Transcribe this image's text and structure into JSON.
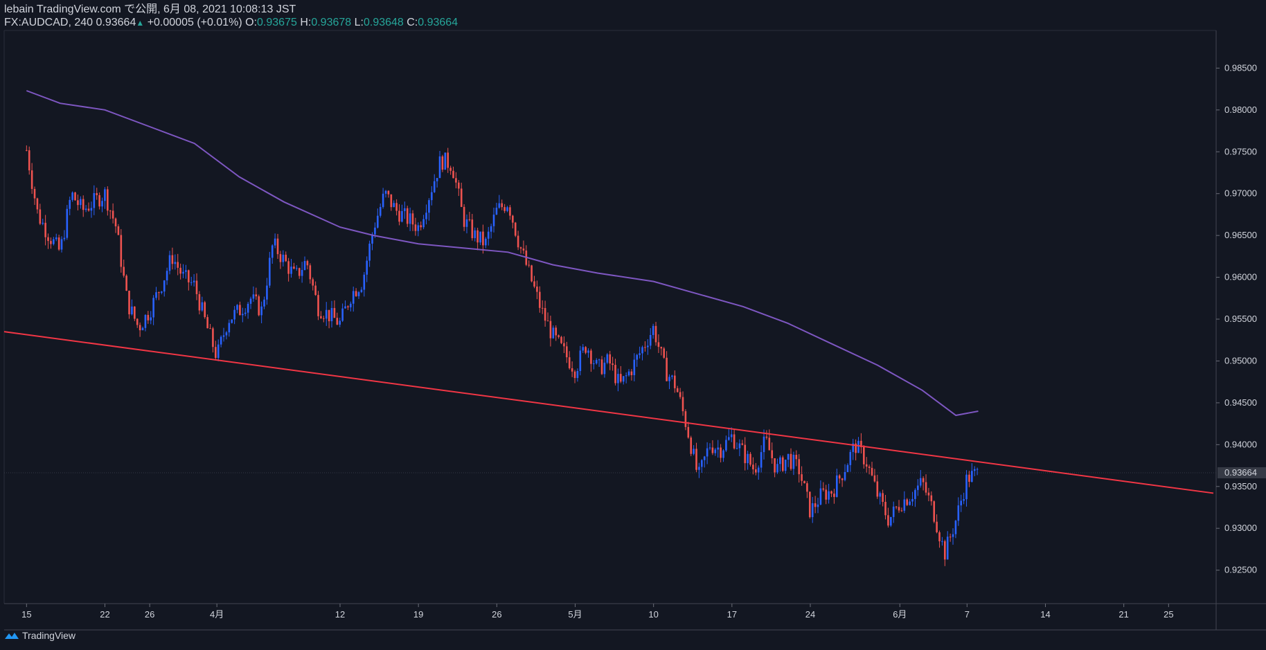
{
  "header": {
    "line1": "lebain TradingView.com で公開, 6月 08, 2021 10:08:13 JST",
    "symbol": "FX:AUDCAD, 240",
    "last": "0.93664",
    "change": "+0.00005 (+0.01%)",
    "o_label": "O:",
    "o_value": "0.93675",
    "h_label": "H:",
    "h_value": "0.93678",
    "l_label": "L:",
    "l_value": "0.93648",
    "c_label": "C:",
    "c_value": "0.93664"
  },
  "footer": {
    "brand": "TradingView",
    "logo_icon": "tradingview-logo-icon"
  },
  "colors": {
    "background": "#131722",
    "up": "#2962ff",
    "down": "#ef5350",
    "ma": "#7e57c2",
    "trendline": "#f23645",
    "text": "#d1d4dc",
    "grid": "#2a2e39"
  },
  "chart_data": {
    "type": "candlestick",
    "symbol": "FX:AUDCAD",
    "interval": "240",
    "y_ticks": [
      "0.98500",
      "0.98000",
      "0.97500",
      "0.97000",
      "0.96500",
      "0.96000",
      "0.95500",
      "0.95000",
      "0.94500",
      "0.94000",
      "0.93500",
      "0.93000",
      "0.92500"
    ],
    "ylim": [
      0.921,
      0.9895
    ],
    "x_ticks": [
      {
        "label": "15",
        "date": "2021-03-15"
      },
      {
        "label": "22",
        "date": "2021-03-22"
      },
      {
        "label": "26",
        "date": "2021-03-26"
      },
      {
        "label": "4月",
        "date": "2021-04-01"
      },
      {
        "label": "12",
        "date": "2021-04-12"
      },
      {
        "label": "19",
        "date": "2021-04-19"
      },
      {
        "label": "26",
        "date": "2021-04-26"
      },
      {
        "label": "5月",
        "date": "2021-05-03"
      },
      {
        "label": "10",
        "date": "2021-05-10"
      },
      {
        "label": "17",
        "date": "2021-05-17"
      },
      {
        "label": "24",
        "date": "2021-05-24"
      },
      {
        "label": "6月",
        "date": "2021-06-01"
      },
      {
        "label": "7",
        "date": "2021-06-07"
      },
      {
        "label": "14",
        "date": "2021-06-14"
      },
      {
        "label": "21",
        "date": "2021-06-21"
      },
      {
        "label": "25",
        "date": "2021-06-25"
      }
    ],
    "last_price": "0.93664",
    "close_path": [
      [
        "2021-03-15",
        0.9752
      ],
      [
        "2021-03-16",
        0.9675
      ],
      [
        "2021-03-17",
        0.965
      ],
      [
        "2021-03-18",
        0.963
      ],
      [
        "2021-03-19",
        0.97
      ],
      [
        "2021-03-20",
        0.968
      ],
      [
        "2021-03-22",
        0.97
      ],
      [
        "2021-03-23",
        0.966
      ],
      [
        "2021-03-24",
        0.957
      ],
      [
        "2021-03-25",
        0.954
      ],
      [
        "2021-03-26",
        0.956
      ],
      [
        "2021-03-27",
        0.959
      ],
      [
        "2021-03-28",
        0.9625
      ],
      [
        "2021-03-29",
        0.96
      ],
      [
        "2021-03-30",
        0.959
      ],
      [
        "2021-03-31",
        0.9545
      ],
      [
        "2021-04-01",
        0.9505
      ],
      [
        "2021-04-02",
        0.955
      ],
      [
        "2021-04-03",
        0.956
      ],
      [
        "2021-04-04",
        0.9575
      ],
      [
        "2021-04-05",
        0.956
      ],
      [
        "2021-04-06",
        0.964
      ],
      [
        "2021-04-07",
        0.962
      ],
      [
        "2021-04-08",
        0.96
      ],
      [
        "2021-04-09",
        0.962
      ],
      [
        "2021-04-10",
        0.9565
      ],
      [
        "2021-04-12",
        0.9545
      ],
      [
        "2021-04-13",
        0.958
      ],
      [
        "2021-04-14",
        0.9595
      ],
      [
        "2021-04-15",
        0.966
      ],
      [
        "2021-04-16",
        0.97
      ],
      [
        "2021-04-17",
        0.968
      ],
      [
        "2021-04-18",
        0.967
      ],
      [
        "2021-04-19",
        0.966
      ],
      [
        "2021-04-20",
        0.97
      ],
      [
        "2021-04-21",
        0.974
      ],
      [
        "2021-04-22",
        0.9735
      ],
      [
        "2021-04-23",
        0.967
      ],
      [
        "2021-04-24",
        0.965
      ],
      [
        "2021-04-25",
        0.964
      ],
      [
        "2021-04-26",
        0.968
      ],
      [
        "2021-04-27",
        0.969
      ],
      [
        "2021-04-28",
        0.964
      ],
      [
        "2021-04-29",
        0.96
      ],
      [
        "2021-04-30",
        0.956
      ],
      [
        "2021-05-01",
        0.953
      ],
      [
        "2021-05-02",
        0.951
      ],
      [
        "2021-05-03",
        0.949
      ],
      [
        "2021-05-04",
        0.952
      ],
      [
        "2021-05-05",
        0.949
      ],
      [
        "2021-05-06",
        0.95
      ],
      [
        "2021-05-07",
        0.947
      ],
      [
        "2021-05-08",
        0.949
      ],
      [
        "2021-05-10",
        0.954
      ],
      [
        "2021-05-11",
        0.949
      ],
      [
        "2021-05-12",
        0.947
      ],
      [
        "2021-05-13",
        0.942
      ],
      [
        "2021-05-14",
        0.936
      ],
      [
        "2021-05-15",
        0.94
      ],
      [
        "2021-05-16",
        0.9395
      ],
      [
        "2021-05-17",
        0.941
      ],
      [
        "2021-05-18",
        0.939
      ],
      [
        "2021-05-19",
        0.937
      ],
      [
        "2021-05-20",
        0.9405
      ],
      [
        "2021-05-21",
        0.937
      ],
      [
        "2021-05-22",
        0.9385
      ],
      [
        "2021-05-23",
        0.937
      ],
      [
        "2021-05-24",
        0.932
      ],
      [
        "2021-05-25",
        0.934
      ],
      [
        "2021-05-26",
        0.9345
      ],
      [
        "2021-05-27",
        0.937
      ],
      [
        "2021-05-28",
        0.94
      ],
      [
        "2021-05-29",
        0.938
      ],
      [
        "2021-05-30",
        0.934
      ],
      [
        "2021-05-31",
        0.931
      ],
      [
        "2021-06-01",
        0.933
      ],
      [
        "2021-06-02",
        0.934
      ],
      [
        "2021-06-03",
        0.9355
      ],
      [
        "2021-06-04",
        0.932
      ],
      [
        "2021-06-05",
        0.927
      ],
      [
        "2021-06-06",
        0.931
      ],
      [
        "2021-06-07",
        0.936
      ],
      [
        "2021-06-08",
        0.9366
      ]
    ],
    "series": [
      {
        "type": "line",
        "points": [
          [
            "2021-03-15",
            0.9823
          ],
          [
            "2021-03-18",
            0.9808
          ],
          [
            "2021-03-22",
            0.98
          ],
          [
            "2021-03-26",
            0.978
          ],
          [
            "2021-03-30",
            0.976
          ],
          [
            "2021-04-03",
            0.972
          ],
          [
            "2021-04-07",
            0.969
          ],
          [
            "2021-04-12",
            0.966
          ],
          [
            "2021-04-15",
            0.965
          ],
          [
            "2021-04-19",
            0.964
          ],
          [
            "2021-04-23",
            0.9635
          ],
          [
            "2021-04-27",
            0.963
          ],
          [
            "2021-05-01",
            0.9615
          ],
          [
            "2021-05-05",
            0.9605
          ],
          [
            "2021-05-10",
            0.9595
          ],
          [
            "2021-05-14",
            0.958
          ],
          [
            "2021-05-18",
            0.9565
          ],
          [
            "2021-05-22",
            0.9545
          ],
          [
            "2021-05-26",
            0.952
          ],
          [
            "2021-05-30",
            0.9495
          ],
          [
            "2021-06-03",
            0.9465
          ],
          [
            "2021-06-06",
            0.9435
          ],
          [
            "2021-06-08",
            0.944
          ]
        ]
      },
      {
        "type": "trendline",
        "points": [
          [
            "2021-03-13",
            0.9535
          ],
          [
            "2021-06-29",
            0.9342
          ]
        ]
      }
    ]
  }
}
